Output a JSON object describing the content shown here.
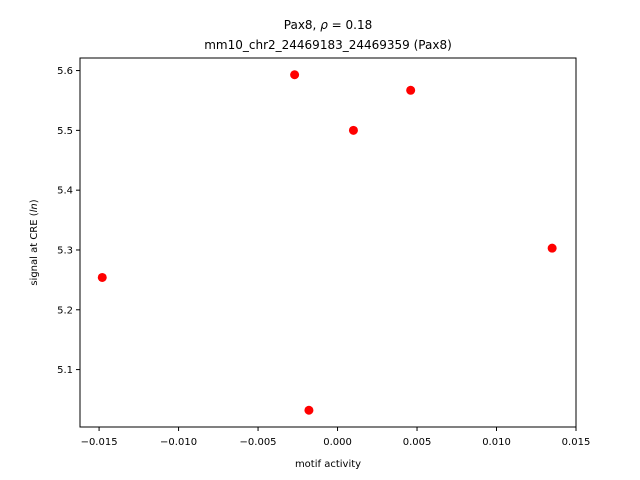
{
  "chart_data": {
    "type": "scatter",
    "title_line1_prefix": "Pax8, ",
    "title_line1_rho_symbol": "ρ",
    "title_line1_rho_value": " = 0.18",
    "title_line2": "mm10_chr2_24469183_24469359 (Pax8)",
    "xlabel": "motif activity",
    "ylabel_prefix": "signal at CRE (",
    "ylabel_italic": "ln",
    "ylabel_suffix": ")",
    "xlim": [
      -0.0162,
      0.015
    ],
    "ylim": [
      5.004,
      5.621
    ],
    "x_ticks": [
      -0.015,
      -0.01,
      -0.005,
      0.0,
      0.005,
      0.01,
      0.015
    ],
    "x_tick_labels": [
      "−0.015",
      "−0.010",
      "−0.005",
      "0.000",
      "0.005",
      "0.010",
      "0.015"
    ],
    "y_ticks": [
      5.1,
      5.2,
      5.3,
      5.4,
      5.5,
      5.6
    ],
    "y_tick_labels": [
      "5.1",
      "5.2",
      "5.3",
      "5.4",
      "5.5",
      "5.6"
    ],
    "grid": false,
    "marker_color": "#ff0000",
    "points": [
      {
        "x": -0.0148,
        "y": 5.254
      },
      {
        "x": -0.0027,
        "y": 5.593
      },
      {
        "x": -0.0018,
        "y": 5.032
      },
      {
        "x": 0.001,
        "y": 5.5
      },
      {
        "x": 0.0046,
        "y": 5.567
      },
      {
        "x": 0.0135,
        "y": 5.303
      }
    ]
  }
}
